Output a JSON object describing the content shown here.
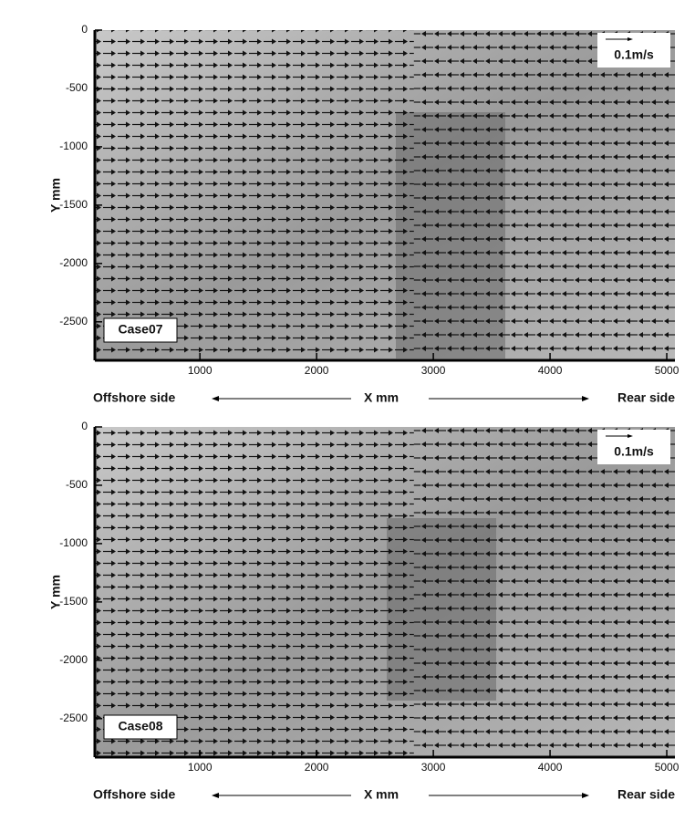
{
  "chart_data": [
    {
      "type": "quiver",
      "label": "Case07",
      "scale_label": "0.1m/s",
      "xlabel": "X mm",
      "ylabel": "Y mm",
      "x_left_label": "Offshore side",
      "x_right_label": "Rear side",
      "xlim": [
        100,
        5070
      ],
      "ylim": [
        -2830,
        0
      ],
      "xticks": [
        1000,
        2000,
        3000,
        4000,
        5000
      ],
      "yticks": [
        0,
        -500,
        -1000,
        -1500,
        -2000,
        -2500
      ]
    },
    {
      "type": "quiver",
      "label": "Case08",
      "scale_label": "0.1m/s",
      "xlabel": "X mm",
      "ylabel": "Y mm",
      "x_left_label": "Offshore side",
      "x_right_label": "Rear side",
      "xlim": [
        100,
        5070
      ],
      "ylim": [
        -2830,
        0
      ],
      "xticks": [
        1000,
        2000,
        3000,
        4000,
        5000
      ],
      "yticks": [
        0,
        -500,
        -1000,
        -1500,
        -2000,
        -2500
      ]
    }
  ]
}
